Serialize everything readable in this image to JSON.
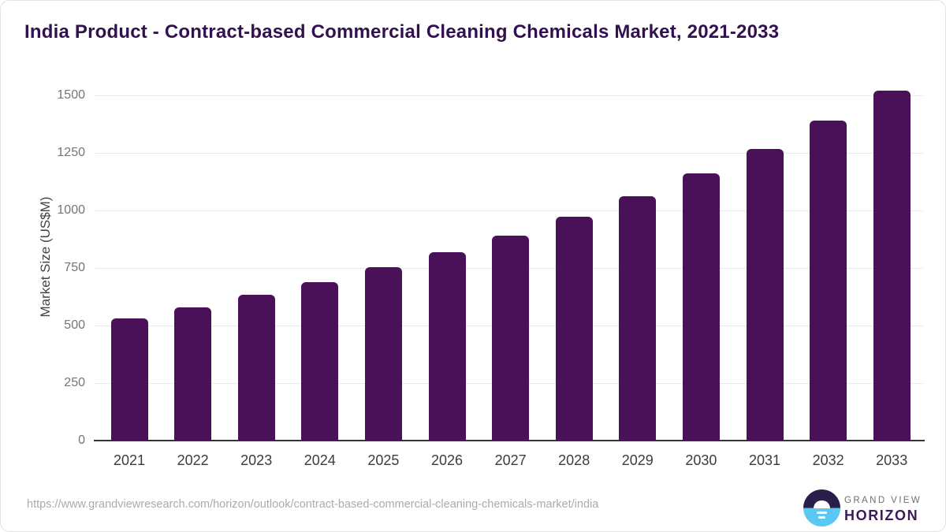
{
  "title": "India Product - Contract-based Commercial Cleaning Chemicals Market, 2021-2033",
  "chart_data": {
    "type": "bar",
    "categories": [
      "2021",
      "2022",
      "2023",
      "2024",
      "2025",
      "2026",
      "2027",
      "2028",
      "2029",
      "2030",
      "2031",
      "2032",
      "2033"
    ],
    "values": [
      530,
      580,
      634,
      690,
      753,
      820,
      891,
      973,
      1062,
      1160,
      1268,
      1390,
      1522
    ],
    "title": "India Product - Contract-based Commercial Cleaning Chemicals Market, 2021-2033",
    "xlabel": "",
    "ylabel": "Market Size (US$M)",
    "ylim": [
      0,
      1500
    ],
    "yticks": [
      0,
      250,
      500,
      750,
      1000,
      1250,
      1500
    ],
    "grid": "horizontal",
    "legend_position": "none",
    "bar_color": "#4a1159"
  },
  "footer": {
    "source_url": "https://www.grandviewresearch.com/horizon/outlook/contract-based-commercial-cleaning-chemicals-market/india",
    "logo_line1": "GRAND VIEW",
    "logo_line2": "HORIZON"
  },
  "colors": {
    "title_text": "#331150",
    "bar": "#4a1159",
    "gridline": "#e8e8e8",
    "axis_line": "#343434",
    "y_tick_text": "#757575",
    "x_tick_text": "#3c3c3c",
    "axis_title_text": "#424242",
    "url_text": "#ababab",
    "logo_circle_top": "#2a1e4a",
    "logo_circle_bottom": "#5ac8f2",
    "logo_grand_view_text": "#6e6e6e",
    "logo_horizon_text": "#3b1b59"
  }
}
